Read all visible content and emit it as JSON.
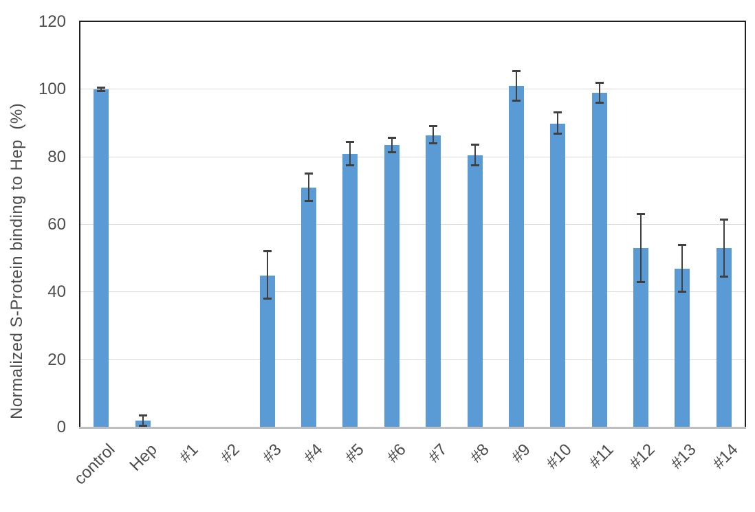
{
  "chart_data": {
    "type": "bar",
    "title": "",
    "xlabel": "",
    "ylabel": "Normalized S-Protein binding to Hep  (%)",
    "categories": [
      "control",
      "Hep",
      "#1",
      "#2",
      "#3",
      "#4",
      "#5",
      "#6",
      "#7",
      "#8",
      "#9",
      "#10",
      "#11",
      "#12",
      "#13",
      "#14"
    ],
    "values": [
      100,
      2,
      0,
      0,
      45,
      71,
      81,
      83.5,
      86.5,
      80.5,
      101,
      90,
      99,
      53,
      47,
      53
    ],
    "errors": [
      0.5,
      1.5,
      0,
      0,
      7,
      4,
      3.5,
      2.2,
      2.5,
      3,
      4.3,
      3.2,
      3,
      10,
      7,
      8.5
    ],
    "ylim": [
      0,
      120
    ],
    "yticks": [
      0,
      20,
      40,
      60,
      80,
      100,
      120
    ],
    "grid": true,
    "legend_position": "none",
    "colors": {
      "bar_fill": "#5b9bd5",
      "error_bar": "#404040",
      "gridline": "#d9d9d9",
      "x_axis_line": "#bfbfbf",
      "plot_border": "#1f1f1f",
      "tick_text": "#4d4d4d"
    }
  }
}
